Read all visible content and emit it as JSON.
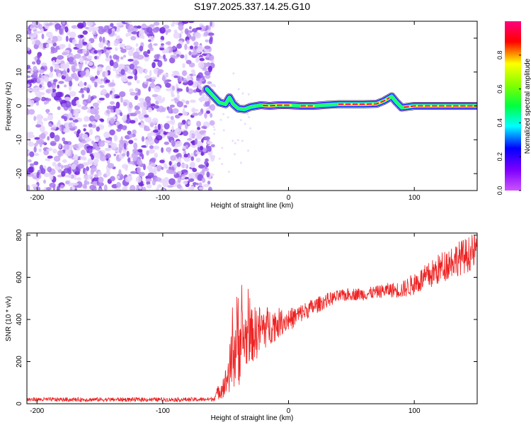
{
  "title": "S197.2025.337.14.25.G10",
  "colors": {
    "snr_line": "#ee2222",
    "noise_colors": [
      "#e6d6fb",
      "#c9a8f4",
      "#a777ec",
      "#8a4ee6",
      "#6f22dc"
    ],
    "track_outline": "#000000"
  },
  "chart_data": [
    {
      "type": "heatmap",
      "title": "S197.2025.337.14.25.G10",
      "xlabel": "Height of straight line (km)",
      "ylabel": "Frequency (Hz)",
      "xlim": [
        -208,
        150
      ],
      "ylim": [
        -25,
        25
      ],
      "xticks": [
        -200,
        -100,
        0,
        100
      ],
      "yticks": [
        -20,
        -10,
        0,
        10,
        20
      ],
      "xtick_labels": [
        "-200",
        "-100",
        "0",
        "100"
      ],
      "ytick_labels": [
        "-20",
        "-10",
        "0",
        "10",
        "20"
      ],
      "noise_region": {
        "x_start": -208,
        "x_end": -60,
        "y_range": [
          -25,
          25
        ]
      },
      "dominant_frequency_track": [
        {
          "x": -65,
          "y": 5
        },
        {
          "x": -60,
          "y": 3
        },
        {
          "x": -55,
          "y": 1
        },
        {
          "x": -50,
          "y": 0.5
        },
        {
          "x": -47,
          "y": 2.5
        },
        {
          "x": -44,
          "y": 0.5
        },
        {
          "x": -40,
          "y": -0.8
        },
        {
          "x": -35,
          "y": -1
        },
        {
          "x": -30,
          "y": -0.3
        },
        {
          "x": -22,
          "y": 0.2
        },
        {
          "x": -15,
          "y": 0
        },
        {
          "x": -8,
          "y": 0.2
        },
        {
          "x": 0,
          "y": 0.2
        },
        {
          "x": 10,
          "y": 0
        },
        {
          "x": 20,
          "y": 0
        },
        {
          "x": 30,
          "y": 0.3
        },
        {
          "x": 40,
          "y": 0.5
        },
        {
          "x": 50,
          "y": 0.5
        },
        {
          "x": 60,
          "y": 0.5
        },
        {
          "x": 70,
          "y": 0.6
        },
        {
          "x": 76,
          "y": 1.5
        },
        {
          "x": 82,
          "y": 2.8
        },
        {
          "x": 86,
          "y": 1
        },
        {
          "x": 90,
          "y": -0.5
        },
        {
          "x": 100,
          "y": 0
        },
        {
          "x": 120,
          "y": 0
        },
        {
          "x": 150,
          "y": 0
        }
      ],
      "colorbar": {
        "label": "Normalized spectral amplitude",
        "range": [
          0,
          1
        ],
        "ticks": [
          0.0,
          0.2,
          0.4,
          0.6,
          0.8
        ],
        "tick_labels": [
          "0.0",
          "0.2",
          "0.4",
          "0.6",
          "0.8"
        ],
        "colormap": "hsv-reversed (purple-blue-cyan-green-yellow-red-pink)"
      }
    },
    {
      "type": "line",
      "xlabel": "Height of straight line (km)",
      "ylabel": "SNR (10 * v/v)",
      "xlim": [
        -208,
        150
      ],
      "ylim": [
        0,
        810
      ],
      "xticks": [
        -200,
        -100,
        0,
        100
      ],
      "yticks": [
        0,
        200,
        400,
        600,
        800
      ],
      "xtick_labels": [
        "-200",
        "-100",
        "0",
        "100"
      ],
      "ytick_labels": [
        "0",
        "200",
        "400",
        "600",
        "800"
      ],
      "series": [
        {
          "name": "SNR",
          "x": [
            -208,
            -150,
            -100,
            -70,
            -60,
            -50,
            -45,
            -42,
            -40,
            -38,
            -35,
            -30,
            -25,
            -20,
            -15,
            -10,
            -5,
            0,
            5,
            10,
            20,
            30,
            40,
            50,
            60,
            70,
            80,
            90,
            100,
            110,
            120,
            130,
            140,
            150
          ],
          "values": [
            20,
            20,
            20,
            20,
            22,
            100,
            200,
            280,
            320,
            300,
            310,
            320,
            340,
            360,
            370,
            380,
            390,
            400,
            410,
            430,
            460,
            490,
            510,
            520,
            520,
            530,
            540,
            540,
            570,
            600,
            640,
            680,
            700,
            730
          ],
          "spread": [
            10,
            10,
            10,
            10,
            10,
            70,
            150,
            200,
            260,
            180,
            150,
            130,
            130,
            110,
            90,
            80,
            60,
            55,
            50,
            45,
            40,
            35,
            30,
            30,
            30,
            30,
            35,
            40,
            55,
            65,
            75,
            80,
            85,
            85
          ]
        }
      ]
    }
  ]
}
